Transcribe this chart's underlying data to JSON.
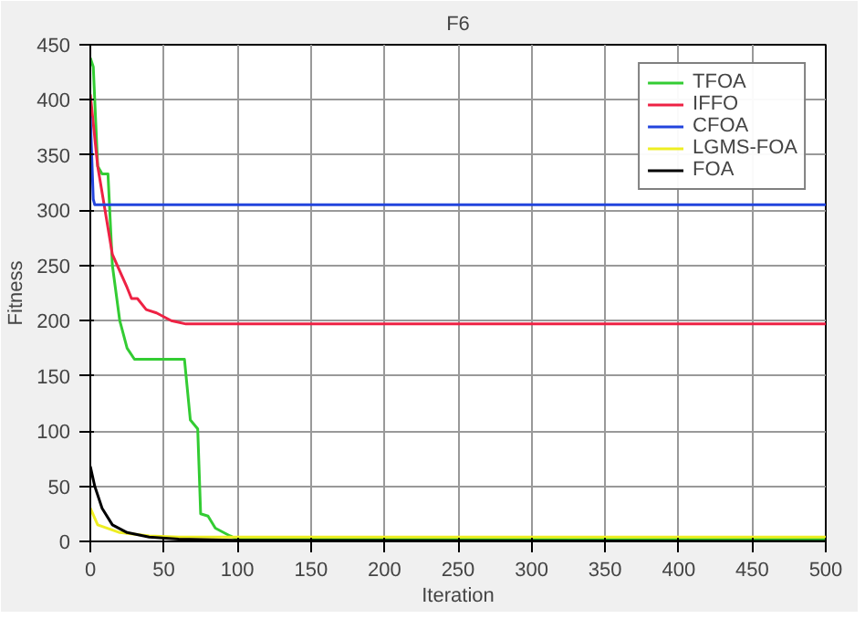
{
  "chart_data": {
    "type": "line",
    "title": "F6",
    "xlabel": "Iteration",
    "ylabel": "Fitness",
    "xlim": [
      0,
      500
    ],
    "ylim": [
      0,
      450
    ],
    "xticks": [
      0,
      50,
      100,
      150,
      200,
      250,
      300,
      350,
      400,
      450,
      500
    ],
    "yticks": [
      0,
      50,
      100,
      150,
      200,
      250,
      300,
      350,
      400,
      450
    ],
    "grid": true,
    "legend": "top right",
    "series": [
      {
        "name": "TFOA",
        "color": "#33cc33",
        "x": [
          0,
          2,
          5,
          8,
          12,
          15,
          20,
          25,
          30,
          64,
          68,
          73,
          75,
          80,
          85,
          95,
          100,
          500
        ],
        "values": [
          438,
          430,
          340,
          333,
          333,
          250,
          200,
          175,
          165,
          165,
          110,
          102,
          25,
          23,
          12,
          5,
          2,
          2
        ]
      },
      {
        "name": "IFFO",
        "color": "#ee2244",
        "x": [
          0,
          5,
          10,
          15,
          20,
          25,
          28,
          32,
          38,
          45,
          55,
          65,
          500
        ],
        "values": [
          405,
          340,
          300,
          260,
          245,
          230,
          220,
          220,
          210,
          207,
          200,
          197,
          197
        ]
      },
      {
        "name": "CFOA",
        "color": "#2244dd",
        "x": [
          0,
          2,
          3,
          500
        ],
        "values": [
          385,
          310,
          305,
          305
        ]
      },
      {
        "name": "LGMS-FOA",
        "color": "#eeee22",
        "x": [
          0,
          5,
          20,
          40,
          60,
          500
        ],
        "values": [
          30,
          15,
          8,
          5,
          4,
          4
        ]
      },
      {
        "name": "FOA",
        "color": "#000000",
        "x": [
          0,
          3,
          8,
          15,
          25,
          40,
          60,
          100,
          500
        ],
        "values": [
          68,
          50,
          30,
          15,
          8,
          4,
          2,
          1,
          0
        ]
      }
    ]
  }
}
